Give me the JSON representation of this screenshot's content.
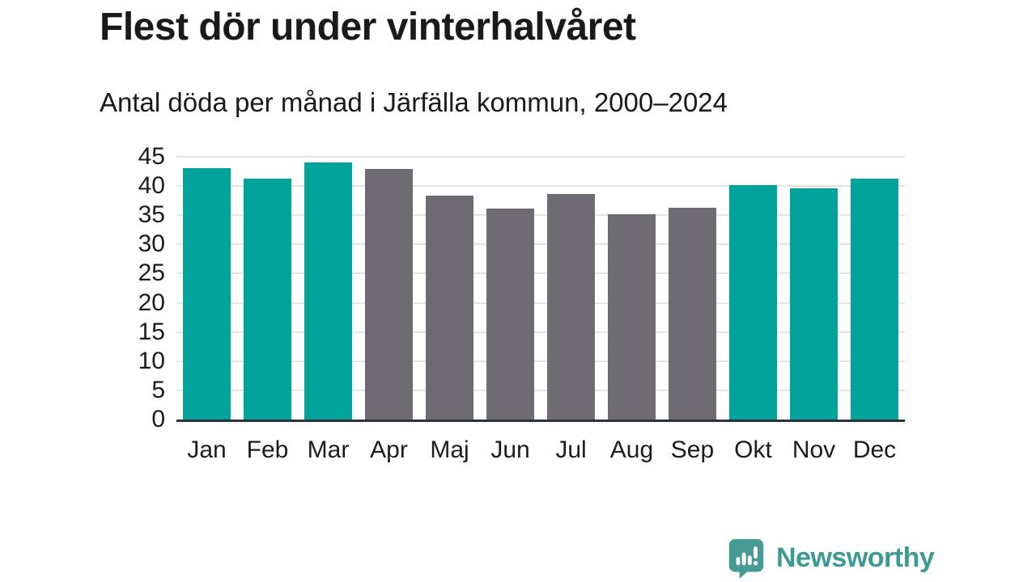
{
  "title": "Flest dör under vinterhalvåret",
  "subtitle": "Antal döda per månad i Järfälla kommun, 2000–2024",
  "brand": {
    "name": "Newsworthy"
  },
  "colors": {
    "highlight": "#00A49A",
    "muted": "#6F6B73",
    "gridline": "#E4E4E5",
    "axis": "#2B3338",
    "text": "#1A1A1A",
    "brand_teal": "#3B9A93"
  },
  "chart_data": {
    "type": "bar",
    "title": "Flest dör under vinterhalvåret",
    "subtitle": "Antal döda per månad i Järfälla kommun, 2000–2024",
    "categories": [
      "Jan",
      "Feb",
      "Mar",
      "Apr",
      "Maj",
      "Jun",
      "Jul",
      "Aug",
      "Sep",
      "Okt",
      "Nov",
      "Dec"
    ],
    "values": [
      43,
      41.3,
      44,
      42.9,
      38.3,
      36.1,
      38.6,
      35.2,
      36.3,
      40.1,
      39.6,
      41.2
    ],
    "highlighted": [
      true,
      true,
      true,
      false,
      false,
      false,
      false,
      false,
      false,
      true,
      true,
      true
    ],
    "xlabel": "",
    "ylabel": "",
    "ylim": [
      0,
      45
    ],
    "ytick_step": 5,
    "yticks": [
      0,
      5,
      10,
      15,
      20,
      25,
      30,
      35,
      40,
      45
    ],
    "grid": "horizontal",
    "legend": "none",
    "highlight_color": "#00A49A",
    "base_color": "#6F6B73"
  }
}
